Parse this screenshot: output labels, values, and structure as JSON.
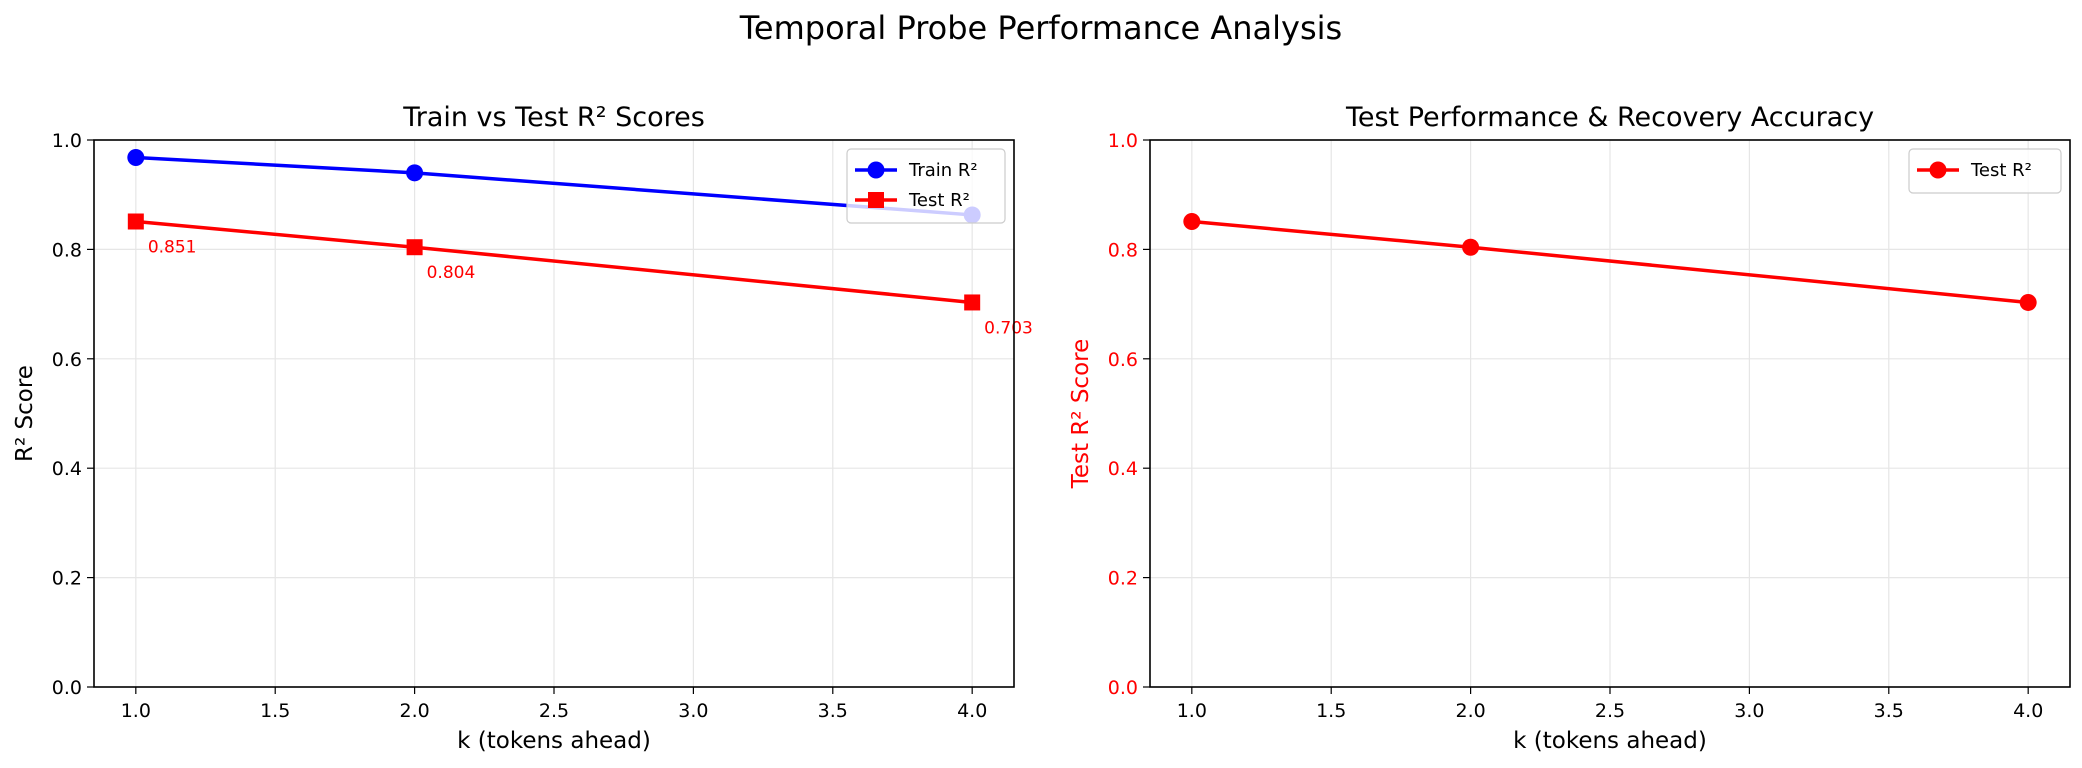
{
  "figure": {
    "suptitle": "Temporal Probe Performance Analysis"
  },
  "colors": {
    "train": "#0000ff",
    "test": "#ff0000",
    "axis": "#000000",
    "grid": "#e6e6e6",
    "legend_border": "#cccccc"
  },
  "chart_data": [
    {
      "type": "line",
      "title": "Train vs Test R² Scores",
      "xlabel": "k (tokens ahead)",
      "ylabel": "R² Score",
      "xlim": [
        0.85,
        4.15
      ],
      "ylim": [
        0.0,
        1.0
      ],
      "xticks": [
        1.0,
        1.5,
        2.0,
        2.5,
        3.0,
        3.5,
        4.0
      ],
      "xtick_labels": [
        "1.0",
        "1.5",
        "2.0",
        "2.5",
        "3.0",
        "3.5",
        "4.0"
      ],
      "yticks": [
        0.0,
        0.2,
        0.4,
        0.6,
        0.8,
        1.0
      ],
      "ytick_labels": [
        "0.0",
        "0.2",
        "0.4",
        "0.6",
        "0.8",
        "1.0"
      ],
      "grid": true,
      "legend_position": "top-right",
      "x": [
        1,
        2,
        4
      ],
      "series": [
        {
          "name": "Train R²",
          "values": [
            0.968,
            0.94,
            0.863
          ],
          "color": "#0000ff",
          "marker": "circle"
        },
        {
          "name": "Test R²",
          "values": [
            0.851,
            0.804,
            0.703
          ],
          "color": "#ff0000",
          "marker": "square"
        }
      ],
      "annotations": [
        {
          "x": 1,
          "y": 0.851,
          "text": "0.851"
        },
        {
          "x": 2,
          "y": 0.804,
          "text": "0.804"
        },
        {
          "x": 4,
          "y": 0.703,
          "text": "0.703"
        }
      ]
    },
    {
      "type": "line",
      "title": "Test Performance & Recovery Accuracy",
      "xlabel": "k (tokens ahead)",
      "ylabel": "Test R² Score",
      "ylabel_color": "#ff0000",
      "ytick_color": "#ff0000",
      "xlim": [
        0.85,
        4.15
      ],
      "ylim": [
        0.0,
        1.0
      ],
      "xticks": [
        1.0,
        1.5,
        2.0,
        2.5,
        3.0,
        3.5,
        4.0
      ],
      "xtick_labels": [
        "1.0",
        "1.5",
        "2.0",
        "2.5",
        "3.0",
        "3.5",
        "4.0"
      ],
      "yticks": [
        0.0,
        0.2,
        0.4,
        0.6,
        0.8,
        1.0
      ],
      "ytick_labels": [
        "0.0",
        "0.2",
        "0.4",
        "0.6",
        "0.8",
        "1.0"
      ],
      "grid": true,
      "legend_position": "top-right",
      "x": [
        1,
        2,
        4
      ],
      "series": [
        {
          "name": "Test R²",
          "values": [
            0.851,
            0.804,
            0.703
          ],
          "color": "#ff0000",
          "marker": "circle"
        }
      ],
      "annotations": []
    }
  ]
}
